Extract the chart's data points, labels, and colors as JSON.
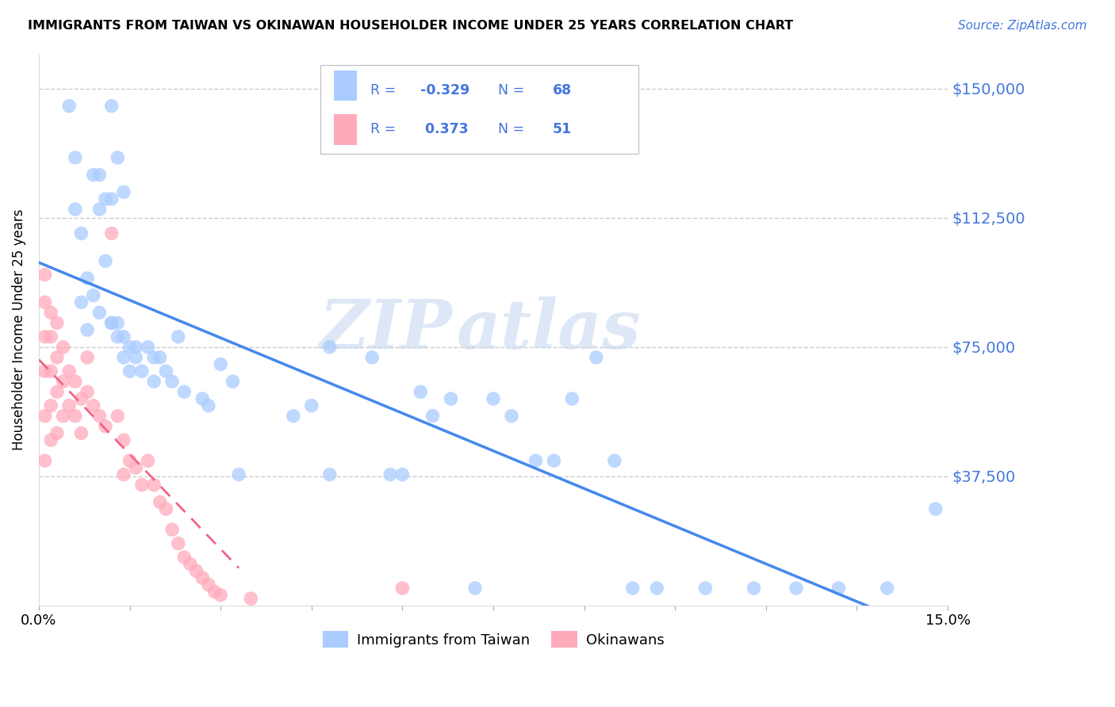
{
  "title": "IMMIGRANTS FROM TAIWAN VS OKINAWAN HOUSEHOLDER INCOME UNDER 25 YEARS CORRELATION CHART",
  "source": "Source: ZipAtlas.com",
  "ylabel_label": "Householder Income Under 25 years",
  "legend_taiwan": "Immigrants from Taiwan",
  "legend_okinawan": "Okinawans",
  "taiwan_color": "#aaccff",
  "okinawan_color": "#ffaabb",
  "taiwan_line_color": "#4488ee",
  "okinawan_line_color": "#ee6688",
  "watermark_zip": "ZIP",
  "watermark_atlas": "atlas",
  "background_color": "#ffffff",
  "grid_color": "#cccccc",
  "taiwan_x": [
    0.005,
    0.006,
    0.012,
    0.013,
    0.014,
    0.006,
    0.007,
    0.009,
    0.01,
    0.011,
    0.012,
    0.008,
    0.009,
    0.01,
    0.01,
    0.011,
    0.012,
    0.007,
    0.008,
    0.012,
    0.013,
    0.014,
    0.015,
    0.013,
    0.014,
    0.015,
    0.016,
    0.016,
    0.017,
    0.018,
    0.019,
    0.019,
    0.02,
    0.021,
    0.022,
    0.023,
    0.024,
    0.027,
    0.028,
    0.03,
    0.032,
    0.033,
    0.042,
    0.045,
    0.048,
    0.048,
    0.055,
    0.058,
    0.06,
    0.063,
    0.065,
    0.068,
    0.072,
    0.075,
    0.078,
    0.082,
    0.085,
    0.088,
    0.092,
    0.095,
    0.098,
    0.102,
    0.11,
    0.118,
    0.125,
    0.132,
    0.14,
    0.148
  ],
  "taiwan_y": [
    145000,
    130000,
    145000,
    130000,
    120000,
    115000,
    108000,
    125000,
    115000,
    100000,
    118000,
    95000,
    90000,
    125000,
    85000,
    118000,
    82000,
    88000,
    80000,
    82000,
    78000,
    72000,
    75000,
    82000,
    78000,
    68000,
    75000,
    72000,
    68000,
    75000,
    72000,
    65000,
    72000,
    68000,
    65000,
    78000,
    62000,
    60000,
    58000,
    70000,
    65000,
    38000,
    55000,
    58000,
    75000,
    38000,
    72000,
    38000,
    38000,
    62000,
    55000,
    60000,
    5000,
    60000,
    55000,
    42000,
    42000,
    60000,
    72000,
    42000,
    5000,
    5000,
    5000,
    5000,
    5000,
    5000,
    5000,
    28000
  ],
  "okinawan_x": [
    0.001,
    0.001,
    0.001,
    0.001,
    0.001,
    0.001,
    0.002,
    0.002,
    0.002,
    0.002,
    0.002,
    0.003,
    0.003,
    0.003,
    0.003,
    0.004,
    0.004,
    0.004,
    0.005,
    0.005,
    0.006,
    0.006,
    0.007,
    0.007,
    0.008,
    0.008,
    0.009,
    0.01,
    0.011,
    0.012,
    0.013,
    0.014,
    0.014,
    0.015,
    0.016,
    0.017,
    0.018,
    0.019,
    0.02,
    0.021,
    0.022,
    0.023,
    0.024,
    0.025,
    0.026,
    0.027,
    0.028,
    0.029,
    0.03,
    0.035,
    0.06
  ],
  "okinawan_y": [
    96000,
    88000,
    78000,
    68000,
    55000,
    42000,
    85000,
    78000,
    68000,
    58000,
    48000,
    82000,
    72000,
    62000,
    50000,
    75000,
    65000,
    55000,
    68000,
    58000,
    65000,
    55000,
    60000,
    50000,
    72000,
    62000,
    58000,
    55000,
    52000,
    108000,
    55000,
    48000,
    38000,
    42000,
    40000,
    35000,
    42000,
    35000,
    30000,
    28000,
    22000,
    18000,
    14000,
    12000,
    10000,
    8000,
    6000,
    4000,
    3000,
    2000,
    5000
  ],
  "xlim": [
    0.0,
    0.15
  ],
  "ylim": [
    0,
    160000
  ],
  "ytick_values": [
    37500,
    75000,
    112500,
    150000
  ],
  "ytick_labels": [
    "$37,500",
    "$75,000",
    "$112,500",
    "$150,000"
  ],
  "xtick_values": [
    0.0,
    0.15
  ],
  "xtick_labels": [
    "0.0%",
    "15.0%"
  ],
  "blue_color": "#4477dd"
}
